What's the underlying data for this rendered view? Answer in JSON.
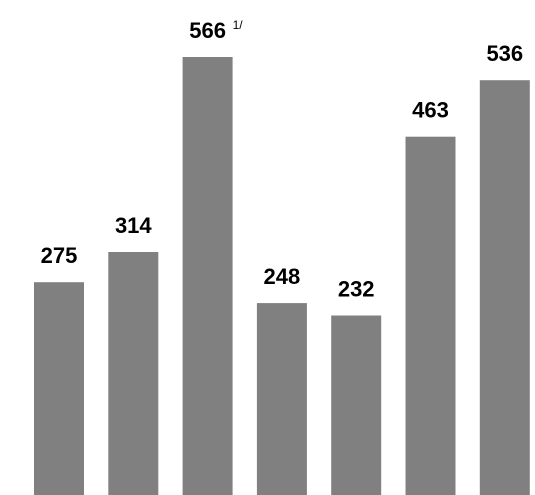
{
  "colors": {
    "bar": "#808080",
    "label": "#000000",
    "background": "#ffffff"
  },
  "chart_data": {
    "type": "bar",
    "title": "",
    "xlabel": "",
    "ylabel": "",
    "grid": false,
    "legend": "none",
    "ylim": [
      0,
      566
    ],
    "values": [
      275,
      314,
      566,
      248,
      232,
      463,
      536
    ],
    "data_labels": [
      "275",
      "314",
      "566",
      "248",
      "232",
      "463",
      "536"
    ],
    "annotations": [
      {
        "bar_index": 2,
        "text": "1/"
      }
    ]
  }
}
